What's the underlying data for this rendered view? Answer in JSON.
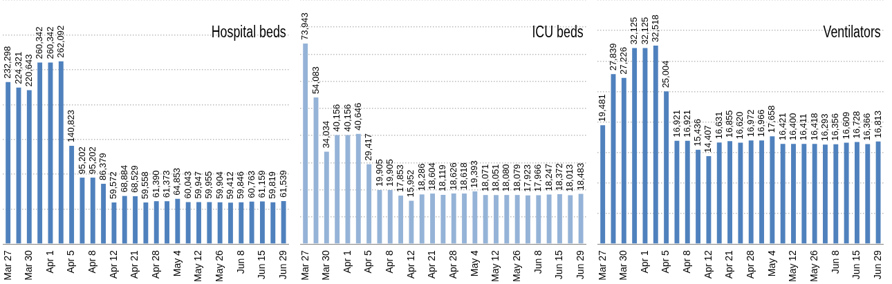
{
  "chart_data": [
    {
      "type": "bar",
      "title": "Hospital beds",
      "categories": [
        "Mar 27",
        null,
        "Mar 30",
        null,
        "Apr 1",
        null,
        "Apr 5",
        null,
        "Apr 8",
        null,
        "Apr 12",
        null,
        "Apr 21",
        null,
        "Apr 28",
        null,
        "May 4",
        null,
        "May 12",
        null,
        "May 26",
        null,
        "Jun 8",
        null,
        "Jun 15",
        null,
        "Jun 29"
      ],
      "values": [
        232298,
        224321,
        220643,
        260342,
        260342,
        262092,
        140823,
        95202,
        95202,
        86379,
        59572,
        68884,
        68529,
        59558,
        61390,
        61373,
        64853,
        60043,
        59947,
        59955,
        59904,
        59412,
        59846,
        60763,
        61159,
        59819,
        61539
      ],
      "value_labels": [
        "232,298",
        "224,321",
        "220,643",
        "260,342",
        "260,342",
        "262,092",
        "140,823",
        "95,202",
        "95,202",
        "86,379",
        "59,572",
        "68,884",
        "68,529",
        "59,558",
        "61,390",
        "61,373",
        "64,853",
        "60,043",
        "59,947",
        "59,955",
        "59,904",
        "59,412",
        "59,846",
        "60,763",
        "61,159",
        "59,819",
        "61,539"
      ],
      "color": "#4f81bd",
      "tick_labels": "x",
      "grid": "y"
    },
    {
      "type": "bar",
      "title": "ICU beds",
      "categories": [
        "Mar 27",
        null,
        "Mar 30",
        null,
        "Apr 1",
        null,
        "Apr 5",
        null,
        "Apr 8",
        null,
        "Apr 12",
        null,
        "Apr 21",
        null,
        "Apr 28",
        null,
        "May 4",
        null,
        "May 12",
        null,
        "May 26",
        null,
        "Jun 8",
        null,
        "Jun 15",
        null,
        "Jun 29"
      ],
      "values": [
        73943,
        54083,
        34034,
        40156,
        40156,
        40646,
        29417,
        19905,
        19905,
        17853,
        15952,
        18286,
        18604,
        18119,
        18626,
        18618,
        19393,
        18071,
        18051,
        18080,
        18079,
        17923,
        17966,
        18247,
        18372,
        18013,
        18483
      ],
      "value_labels": [
        "73,943",
        "54,083",
        "34,034",
        "40,156",
        "40,156",
        "40,646",
        "29,417",
        "19,905",
        "19,905",
        "17,853",
        "15,952",
        "18,286",
        "18,604",
        "18,119",
        "18,626",
        "18,618",
        "19,393",
        "18,071",
        "18,051",
        "18,080",
        "18,079",
        "17,923",
        "17,966",
        "18,247",
        "18,372",
        "18,013",
        "18,483"
      ],
      "color": "#95b3d7",
      "tick_labels": "x",
      "grid": "y"
    },
    {
      "type": "bar",
      "title": "Ventilators",
      "categories": [
        "Mar 27",
        null,
        "Mar 30",
        null,
        "Apr 1",
        null,
        "Apr 5",
        null,
        "Apr 8",
        null,
        "Apr 12",
        null,
        "Apr 21",
        null,
        "Apr 28",
        null,
        "May 4",
        null,
        "May 12",
        null,
        "May 26",
        null,
        "Jun 8",
        null,
        "Jun 15",
        null,
        "Jun 29"
      ],
      "values": [
        19481,
        27839,
        27226,
        32125,
        32125,
        32518,
        25004,
        16921,
        16921,
        15436,
        14407,
        16631,
        16855,
        16620,
        16972,
        16966,
        17658,
        16421,
        16400,
        16411,
        16418,
        16293,
        16356,
        16609,
        16728,
        16366,
        16813
      ],
      "value_labels": [
        "19,481",
        "27,839",
        "27,226",
        "32,125",
        "32,125",
        "32,518",
        "25,004",
        "16,921",
        "16,921",
        "15,436",
        "14,407",
        "16,631",
        "16,855",
        "16,620",
        "16,972",
        "16,966",
        "17,658",
        "16,421",
        "16,400",
        "16,411",
        "16,418",
        "16,293",
        "16,356",
        "16,609",
        "16,728",
        "16,366",
        "16,813"
      ],
      "color": "#4f81bd",
      "tick_labels": "x",
      "grid": "y"
    }
  ]
}
